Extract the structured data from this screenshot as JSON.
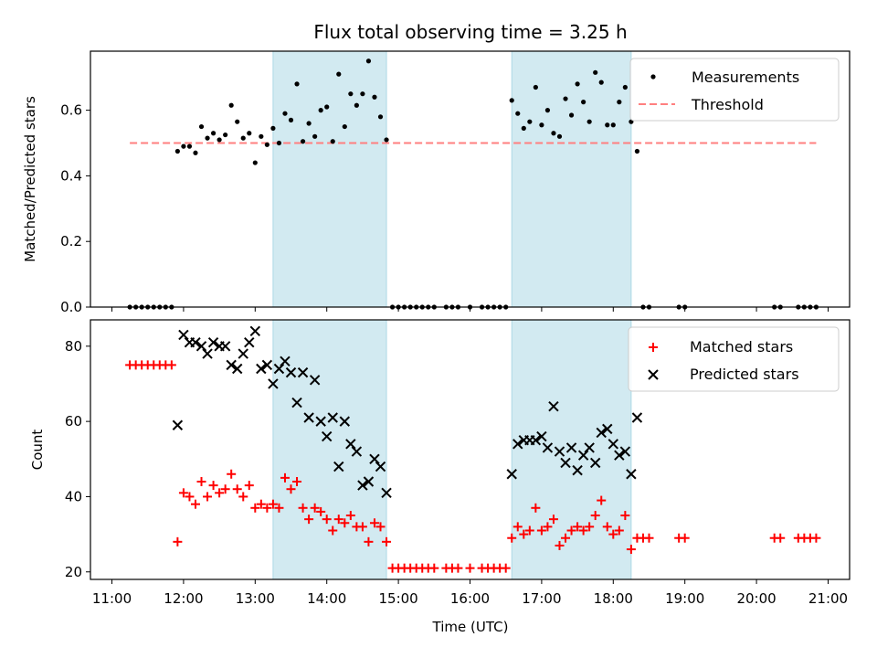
{
  "chart_data": [
    {
      "type": "scatter",
      "title": "Flux total observing time = 3.25 h",
      "xlabel": "",
      "ylabel": "Matched/Predicted stars",
      "ylim": [
        0,
        0.78
      ],
      "yticks": [
        "0.0",
        "0.2",
        "0.4",
        "0.6"
      ],
      "ytick_values": [
        0,
        0.2,
        0.4,
        0.6
      ],
      "grid": false,
      "legend_position": "top-right",
      "shaded_intervals": [
        [
          "13:15",
          "14:50"
        ],
        [
          "16:35",
          "18:15"
        ]
      ],
      "shade_color": "#add8e6",
      "threshold": {
        "name": "Threshold",
        "y": 0.5,
        "x_start": "11:15",
        "x_end": "20:50",
        "color": "#ff7f7f"
      },
      "series": [
        {
          "name": "Measurements",
          "color": "#000000",
          "marker": "dot",
          "points": [
            [
              "11:15",
              0
            ],
            [
              "11:20",
              0
            ],
            [
              "11:25",
              0
            ],
            [
              "11:30",
              0
            ],
            [
              "11:35",
              0
            ],
            [
              "11:40",
              0
            ],
            [
              "11:45",
              0
            ],
            [
              "11:50",
              0
            ],
            [
              "11:55",
              0.475
            ],
            [
              "12:00",
              0.49
            ],
            [
              "12:05",
              0.49
            ],
            [
              "12:10",
              0.47
            ],
            [
              "12:15",
              0.55
            ],
            [
              "12:20",
              0.515
            ],
            [
              "12:25",
              0.53
            ],
            [
              "12:30",
              0.51
            ],
            [
              "12:35",
              0.525
            ],
            [
              "12:40",
              0.615
            ],
            [
              "12:45",
              0.565
            ],
            [
              "12:50",
              0.515
            ],
            [
              "12:55",
              0.53
            ],
            [
              "13:00",
              0.44
            ],
            [
              "13:05",
              0.52
            ],
            [
              "13:10",
              0.495
            ],
            [
              "13:15",
              0.545
            ],
            [
              "13:20",
              0.5
            ],
            [
              "13:25",
              0.59
            ],
            [
              "13:30",
              0.57
            ],
            [
              "13:35",
              0.68
            ],
            [
              "13:40",
              0.505
            ],
            [
              "13:45",
              0.56
            ],
            [
              "13:50",
              0.52
            ],
            [
              "13:55",
              0.6
            ],
            [
              "14:00",
              0.61
            ],
            [
              "14:05",
              0.505
            ],
            [
              "14:10",
              0.71
            ],
            [
              "14:15",
              0.55
            ],
            [
              "14:20",
              0.65
            ],
            [
              "14:25",
              0.615
            ],
            [
              "14:30",
              0.65
            ],
            [
              "14:35",
              0.75
            ],
            [
              "14:40",
              0.64
            ],
            [
              "14:45",
              0.58
            ],
            [
              "14:50",
              0.51
            ],
            [
              "14:55",
              0
            ],
            [
              "15:00",
              0
            ],
            [
              "15:05",
              0
            ],
            [
              "15:10",
              0
            ],
            [
              "15:15",
              0
            ],
            [
              "15:20",
              0
            ],
            [
              "15:25",
              0
            ],
            [
              "15:30",
              0
            ],
            [
              "15:40",
              0
            ],
            [
              "15:45",
              0
            ],
            [
              "15:50",
              0
            ],
            [
              "16:00",
              0
            ],
            [
              "16:10",
              0
            ],
            [
              "16:15",
              0
            ],
            [
              "16:20",
              0
            ],
            [
              "16:25",
              0
            ],
            [
              "16:30",
              0
            ],
            [
              "16:35",
              0.63
            ],
            [
              "16:40",
              0.59
            ],
            [
              "16:45",
              0.545
            ],
            [
              "16:50",
              0.565
            ],
            [
              "16:55",
              0.67
            ],
            [
              "17:00",
              0.555
            ],
            [
              "17:05",
              0.6
            ],
            [
              "17:10",
              0.53
            ],
            [
              "17:15",
              0.52
            ],
            [
              "17:20",
              0.635
            ],
            [
              "17:25",
              0.585
            ],
            [
              "17:30",
              0.68
            ],
            [
              "17:35",
              0.625
            ],
            [
              "17:40",
              0.565
            ],
            [
              "17:45",
              0.715
            ],
            [
              "17:50",
              0.685
            ],
            [
              "17:55",
              0.555
            ],
            [
              "18:00",
              0.555
            ],
            [
              "18:05",
              0.625
            ],
            [
              "18:10",
              0.67
            ],
            [
              "18:15",
              0.565
            ],
            [
              "18:20",
              0.475
            ],
            [
              "18:25",
              0
            ],
            [
              "18:30",
              0
            ],
            [
              "18:55",
              0
            ],
            [
              "19:00",
              0
            ],
            [
              "20:15",
              0
            ],
            [
              "20:20",
              0
            ],
            [
              "20:35",
              0
            ],
            [
              "20:40",
              0
            ],
            [
              "20:45",
              0
            ],
            [
              "20:50",
              0
            ]
          ]
        }
      ]
    },
    {
      "type": "scatter",
      "title": "",
      "xlabel": "Time (UTC)",
      "ylabel": "Count",
      "ylim": [
        18,
        87
      ],
      "yticks": [
        "20",
        "40",
        "60",
        "80"
      ],
      "ytick_values": [
        20,
        40,
        60,
        80
      ],
      "xticks": [
        "11:00",
        "12:00",
        "13:00",
        "14:00",
        "15:00",
        "16:00",
        "17:00",
        "18:00",
        "19:00",
        "20:00",
        "21:00"
      ],
      "grid": false,
      "legend_position": "top-right",
      "shaded_intervals": [
        [
          "13:15",
          "14:50"
        ],
        [
          "16:35",
          "18:15"
        ]
      ],
      "series": [
        {
          "name": "Matched stars",
          "color": "#ff0000",
          "marker": "plus",
          "points": [
            [
              "11:15",
              75
            ],
            [
              "11:20",
              75
            ],
            [
              "11:25",
              75
            ],
            [
              "11:30",
              75
            ],
            [
              "11:35",
              75
            ],
            [
              "11:40",
              75
            ],
            [
              "11:45",
              75
            ],
            [
              "11:50",
              75
            ],
            [
              "11:55",
              28
            ],
            [
              "12:00",
              41
            ],
            [
              "12:05",
              40
            ],
            [
              "12:10",
              38
            ],
            [
              "12:15",
              44
            ],
            [
              "12:20",
              40
            ],
            [
              "12:25",
              43
            ],
            [
              "12:30",
              41
            ],
            [
              "12:35",
              42
            ],
            [
              "12:40",
              46
            ],
            [
              "12:45",
              42
            ],
            [
              "12:50",
              40
            ],
            [
              "12:55",
              43
            ],
            [
              "13:00",
              37
            ],
            [
              "13:05",
              38
            ],
            [
              "13:10",
              37
            ],
            [
              "13:15",
              38
            ],
            [
              "13:20",
              37
            ],
            [
              "13:25",
              45
            ],
            [
              "13:30",
              42
            ],
            [
              "13:35",
              44
            ],
            [
              "13:40",
              37
            ],
            [
              "13:45",
              34
            ],
            [
              "13:50",
              37
            ],
            [
              "13:55",
              36
            ],
            [
              "14:00",
              34
            ],
            [
              "14:05",
              31
            ],
            [
              "14:10",
              34
            ],
            [
              "14:15",
              33
            ],
            [
              "14:20",
              35
            ],
            [
              "14:25",
              32
            ],
            [
              "14:30",
              32
            ],
            [
              "14:35",
              28
            ],
            [
              "14:40",
              33
            ],
            [
              "14:45",
              32
            ],
            [
              "14:50",
              28
            ],
            [
              "14:55",
              21
            ],
            [
              "15:00",
              21
            ],
            [
              "15:05",
              21
            ],
            [
              "15:10",
              21
            ],
            [
              "15:15",
              21
            ],
            [
              "15:20",
              21
            ],
            [
              "15:25",
              21
            ],
            [
              "15:30",
              21
            ],
            [
              "15:40",
              21
            ],
            [
              "15:45",
              21
            ],
            [
              "15:50",
              21
            ],
            [
              "16:00",
              21
            ],
            [
              "16:10",
              21
            ],
            [
              "16:15",
              21
            ],
            [
              "16:20",
              21
            ],
            [
              "16:25",
              21
            ],
            [
              "16:30",
              21
            ],
            [
              "16:35",
              29
            ],
            [
              "16:40",
              32
            ],
            [
              "16:45",
              30
            ],
            [
              "16:50",
              31
            ],
            [
              "16:55",
              37
            ],
            [
              "17:00",
              31
            ],
            [
              "17:05",
              32
            ],
            [
              "17:10",
              34
            ],
            [
              "17:15",
              27
            ],
            [
              "17:20",
              29
            ],
            [
              "17:25",
              31
            ],
            [
              "17:30",
              32
            ],
            [
              "17:35",
              31
            ],
            [
              "17:40",
              32
            ],
            [
              "17:45",
              35
            ],
            [
              "17:50",
              39
            ],
            [
              "17:55",
              32
            ],
            [
              "18:00",
              30
            ],
            [
              "18:05",
              31
            ],
            [
              "18:10",
              35
            ],
            [
              "18:15",
              26
            ],
            [
              "18:20",
              29
            ],
            [
              "18:25",
              29
            ],
            [
              "18:30",
              29
            ],
            [
              "18:55",
              29
            ],
            [
              "19:00",
              29
            ],
            [
              "20:15",
              29
            ],
            [
              "20:20",
              29
            ],
            [
              "20:35",
              29
            ],
            [
              "20:40",
              29
            ],
            [
              "20:45",
              29
            ],
            [
              "20:50",
              29
            ]
          ]
        },
        {
          "name": "Predicted stars",
          "color": "#000000",
          "marker": "x",
          "points": [
            [
              "11:55",
              59
            ],
            [
              "12:00",
              83
            ],
            [
              "12:05",
              81
            ],
            [
              "12:10",
              81
            ],
            [
              "12:15",
              80
            ],
            [
              "12:20",
              78
            ],
            [
              "12:25",
              81
            ],
            [
              "12:30",
              80
            ],
            [
              "12:35",
              80
            ],
            [
              "12:40",
              75
            ],
            [
              "12:45",
              74
            ],
            [
              "12:50",
              78
            ],
            [
              "12:55",
              81
            ],
            [
              "13:00",
              84
            ],
            [
              "13:05",
              74
            ],
            [
              "13:10",
              75
            ],
            [
              "13:15",
              70
            ],
            [
              "13:20",
              74
            ],
            [
              "13:25",
              76
            ],
            [
              "13:30",
              73
            ],
            [
              "13:35",
              65
            ],
            [
              "13:40",
              73
            ],
            [
              "13:45",
              61
            ],
            [
              "13:50",
              71
            ],
            [
              "13:55",
              60
            ],
            [
              "14:00",
              56
            ],
            [
              "14:05",
              61
            ],
            [
              "14:10",
              48
            ],
            [
              "14:15",
              60
            ],
            [
              "14:20",
              54
            ],
            [
              "14:25",
              52
            ],
            [
              "14:30",
              43
            ],
            [
              "14:35",
              44
            ],
            [
              "14:40",
              50
            ],
            [
              "14:45",
              48
            ],
            [
              "14:50",
              41
            ],
            [
              "16:35",
              46
            ],
            [
              "16:40",
              54
            ],
            [
              "16:45",
              55
            ],
            [
              "16:50",
              55
            ],
            [
              "16:55",
              55
            ],
            [
              "17:00",
              56
            ],
            [
              "17:05",
              53
            ],
            [
              "17:10",
              64
            ],
            [
              "17:15",
              52
            ],
            [
              "17:20",
              49
            ],
            [
              "17:25",
              53
            ],
            [
              "17:30",
              47
            ],
            [
              "17:35",
              51
            ],
            [
              "17:40",
              53
            ],
            [
              "17:45",
              49
            ],
            [
              "17:50",
              57
            ],
            [
              "17:55",
              58
            ],
            [
              "18:00",
              54
            ],
            [
              "18:05",
              51
            ],
            [
              "18:10",
              52
            ],
            [
              "18:15",
              46
            ],
            [
              "18:20",
              61
            ]
          ]
        }
      ]
    }
  ]
}
